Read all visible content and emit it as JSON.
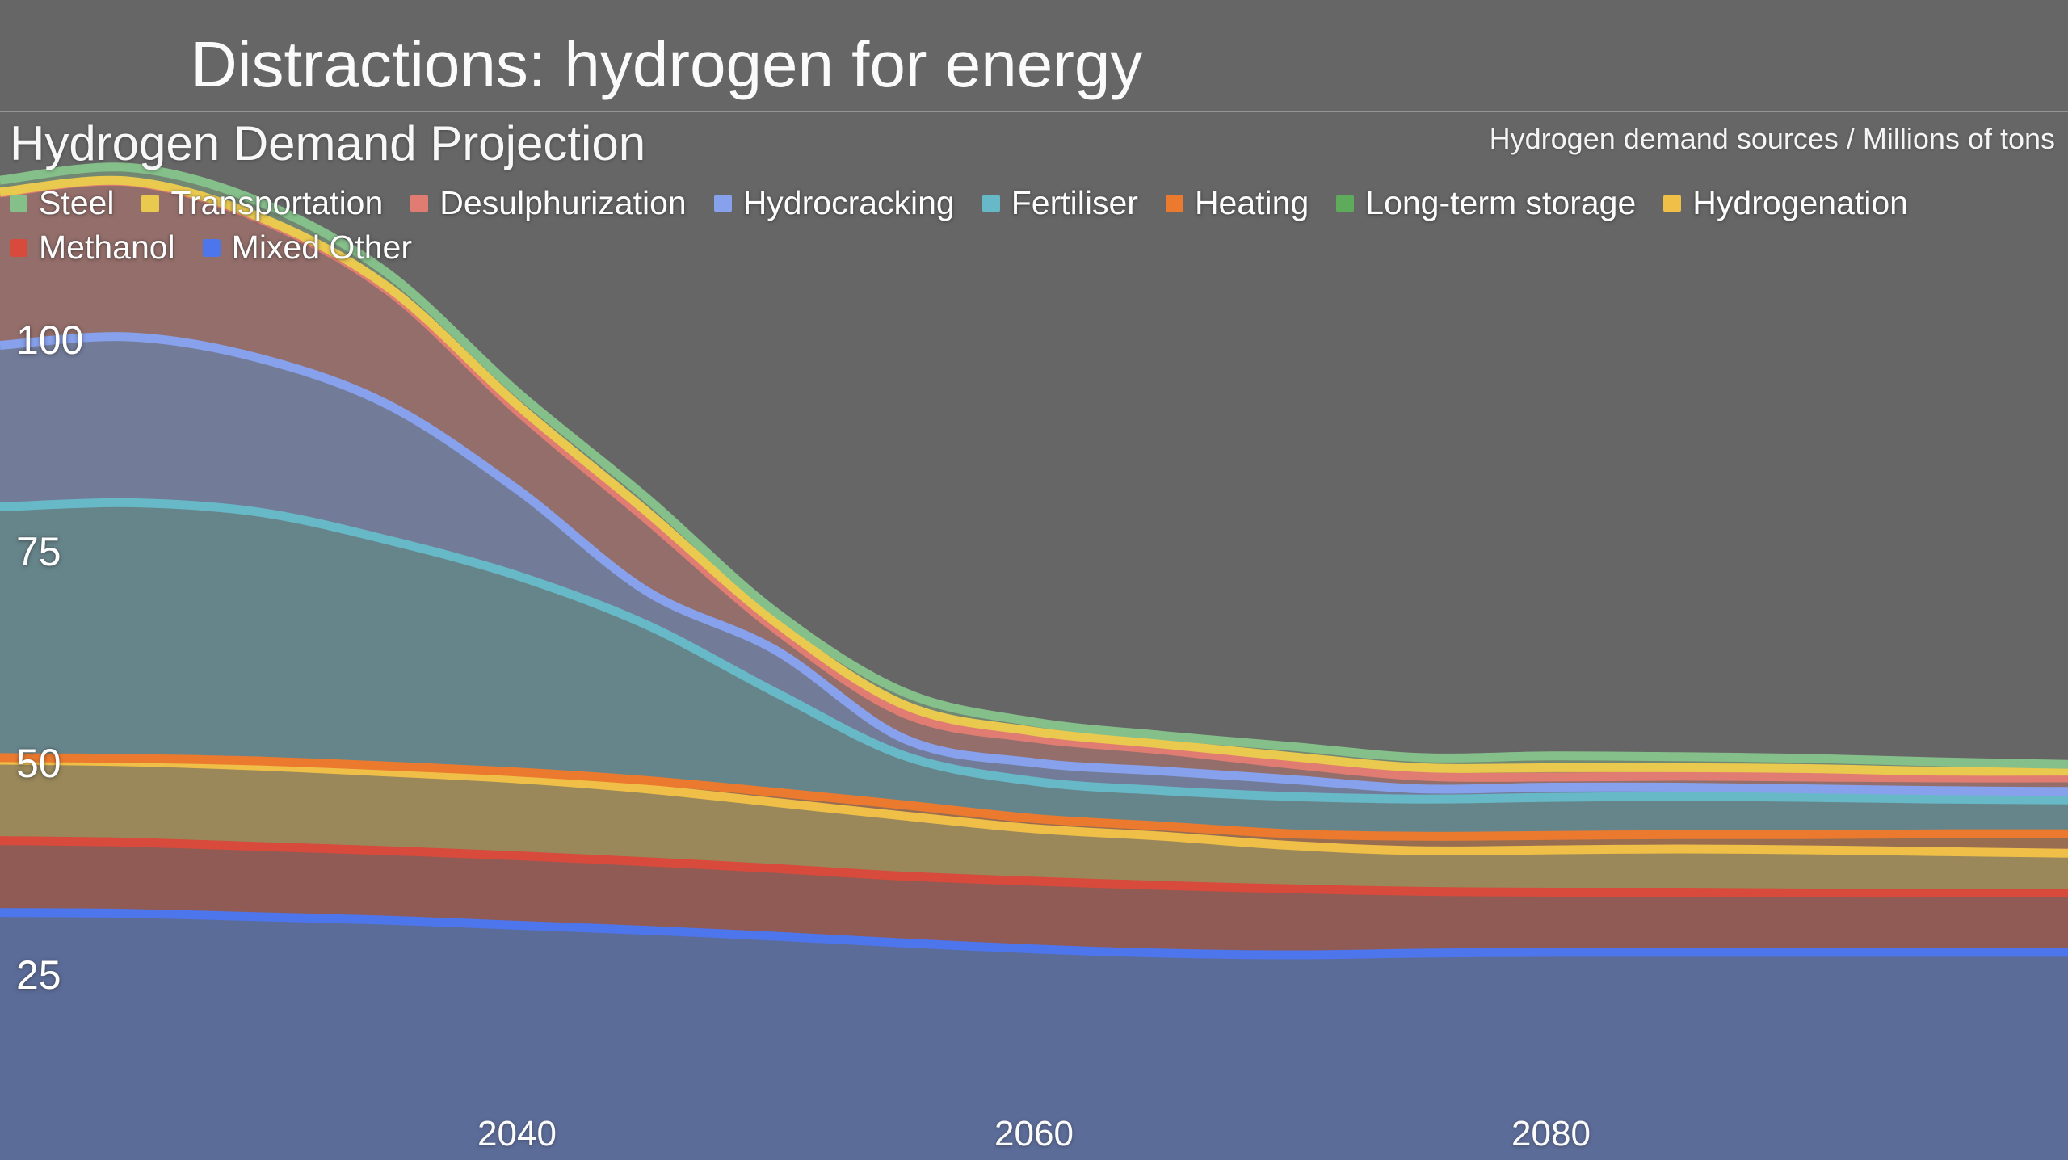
{
  "title": "Distractions: hydrogen for energy",
  "header": {
    "heading": "Hydrogen Demand Projection",
    "units_label": "Hydrogen demand sources / Millions of tons"
  },
  "colors": {
    "background": "#666666",
    "divider": "rgba(255,255,255,0.30)",
    "text": "#fafafa",
    "fill_opacity": 0.38
  },
  "legend": {
    "rows": [
      [
        {
          "key": "steel",
          "label": "Steel",
          "color": "#85bf8a"
        },
        {
          "key": "transportation",
          "label": "Transportation",
          "color": "#eac94f"
        },
        {
          "key": "desulphurization",
          "label": "Desulphurization",
          "color": "#e07c72"
        },
        {
          "key": "hydrocracking",
          "label": "Hydrocracking",
          "color": "#87a1ec"
        },
        {
          "key": "fertiliser",
          "label": "Fertiliser",
          "color": "#67b9c7"
        },
        {
          "key": "heating",
          "label": "Heating",
          "color": "#ec7a2e"
        },
        {
          "key": "long-term-storage",
          "label": "Long-term storage",
          "color": "#5fab5c"
        },
        {
          "key": "hydrogenation",
          "label": "Hydrogenation",
          "color": "#f0bf47"
        }
      ],
      [
        {
          "key": "methanol",
          "label": "Methanol",
          "color": "#d84a3b"
        },
        {
          "key": "mixed-other",
          "label": "Mixed Other",
          "color": "#4d75ec"
        }
      ]
    ]
  },
  "chart_data": {
    "type": "area",
    "stacked": true,
    "title": "Hydrogen Demand Projection",
    "ylabel": "Hydrogen demand sources / Millions of tons",
    "xlim": [
      2020,
      2100
    ],
    "x_ticks": [
      2040,
      2060,
      2080
    ],
    "y_ticks": [
      25,
      50,
      75,
      100
    ],
    "x": [
      2020,
      2025,
      2030,
      2035,
      2040,
      2045,
      2050,
      2055,
      2060,
      2065,
      2070,
      2075,
      2080,
      2085,
      2090,
      2095,
      2100
    ],
    "stack_order": "first series is top of stack",
    "series": [
      {
        "key": "steel",
        "name": "Steel",
        "color": "#85bf8a",
        "values": [
          1.4,
          1.6,
          1.8,
          1.6,
          1.5,
          1.6,
          1.2,
          1.5,
          1.1,
          1.0,
          1.2,
          1.2,
          1.4,
          1.3,
          1.2,
          1.1,
          0.8
        ]
      },
      {
        "key": "transportation",
        "name": "Transportation",
        "color": "#eac94f",
        "values": [
          0.1,
          0.1,
          0.2,
          0.4,
          0.7,
          0.9,
          0.8,
          1.0,
          0.8,
          0.7,
          0.9,
          1.0,
          1.1,
          1.0,
          1.0,
          0.8,
          0.8
        ]
      },
      {
        "key": "desulphurization",
        "name": "Desulphurization",
        "color": "#e07c72",
        "values": [
          18.0,
          18.3,
          16.5,
          13.5,
          9.3,
          8.5,
          2.5,
          3.0,
          2.9,
          2.5,
          1.8,
          1.5,
          1.2,
          1.3,
          1.4,
          1.5,
          1.6
        ]
      },
      {
        "key": "hydrocracking",
        "name": "Hydrocracking",
        "color": "#87a1ec",
        "values": [
          19.1,
          19.6,
          18.2,
          16.0,
          10.2,
          4.0,
          5.0,
          2.0,
          2.2,
          2.3,
          2.0,
          1.2,
          1.2,
          1.1,
          1.0,
          1.0,
          1.0
        ]
      },
      {
        "key": "fertiliser",
        "name": "Fertiliser",
        "color": "#67b9c7",
        "values": [
          29.6,
          30.2,
          29.4,
          26.7,
          23.2,
          18.4,
          11.8,
          5.8,
          4.4,
          4.2,
          4.4,
          4.4,
          4.5,
          4.5,
          4.4,
          4.1,
          4.0
        ]
      },
      {
        "key": "heating",
        "name": "Heating",
        "color": "#ec7a2e",
        "values": [
          0.3,
          0.4,
          0.6,
          0.7,
          0.8,
          1.0,
          1.2,
          1.3,
          1.2,
          1.2,
          1.4,
          1.7,
          1.7,
          1.7,
          1.8,
          2.1,
          2.3
        ]
      },
      {
        "key": "long-term-storage",
        "name": "Long-term storage",
        "color": "#5fab5c",
        "values": [
          0,
          0,
          0,
          0,
          0,
          0,
          0,
          0,
          0,
          0,
          0,
          0,
          0,
          0,
          0,
          0,
          0
        ]
      },
      {
        "key": "hydrogenation",
        "name": "Hydrogenation",
        "color": "#f0bf47",
        "values": [
          9.5,
          9.5,
          9.5,
          9.3,
          9.1,
          8.6,
          7.8,
          7.1,
          6.2,
          5.8,
          5.1,
          4.8,
          5.0,
          5.1,
          5.1,
          4.9,
          4.7
        ]
      },
      {
        "key": "methanol",
        "name": "Methanol",
        "color": "#d84a3b",
        "values": [
          8.5,
          8.4,
          8.3,
          8.2,
          8.2,
          8.1,
          8.0,
          7.9,
          8.0,
          8.0,
          7.8,
          7.3,
          7.1,
          7.1,
          7.0,
          7.0,
          7.0
        ]
      },
      {
        "key": "mixed-other",
        "name": "Mixed Other",
        "color": "#4d75ec",
        "values": [
          32.0,
          31.9,
          31.5,
          31.1,
          30.5,
          29.9,
          29.2,
          28.4,
          27.7,
          27.2,
          27.0,
          27.2,
          27.3,
          27.3,
          27.3,
          27.3,
          27.3
        ]
      }
    ]
  }
}
